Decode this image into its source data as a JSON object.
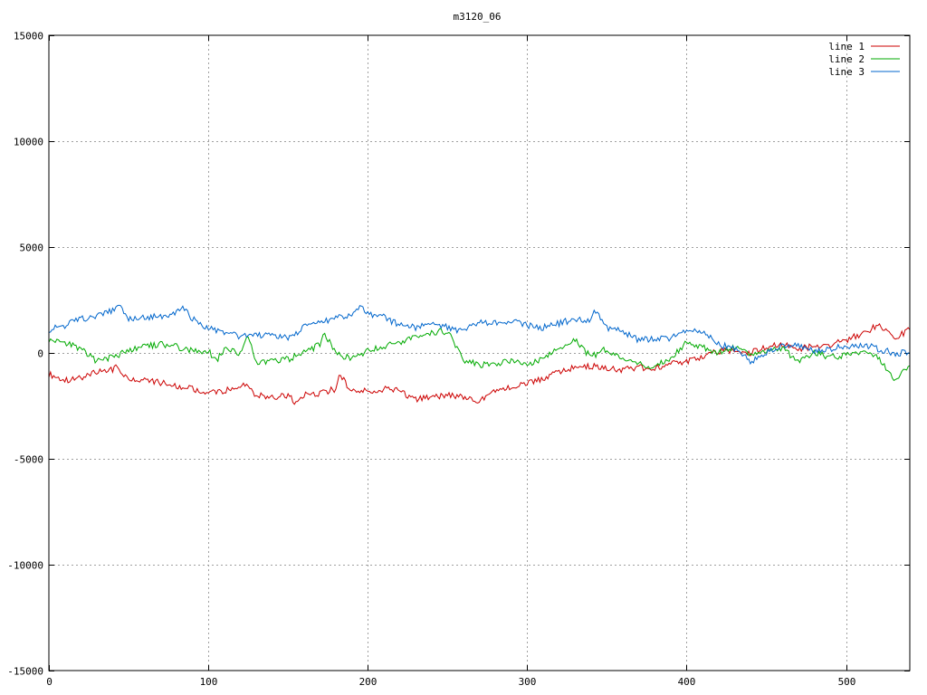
{
  "chart_data": {
    "type": "line",
    "title": "m3120_06",
    "xlabel": "",
    "ylabel": "",
    "xlim": [
      0,
      540
    ],
    "ylim": [
      -15000,
      15000
    ],
    "x_ticks": [
      0,
      100,
      200,
      300,
      400,
      500
    ],
    "y_ticks": [
      -15000,
      -10000,
      -5000,
      0,
      5000,
      10000,
      15000
    ],
    "x_tick_labels": [
      "0",
      "100",
      "200",
      "300",
      "400",
      "500"
    ],
    "y_tick_labels": [
      "-15000",
      "-10000",
      "-5000",
      "0",
      "5000",
      "10000",
      "15000"
    ],
    "grid": true,
    "legend_position": "top-right",
    "series": [
      {
        "name": "line 1",
        "color": "#cc0000",
        "x": [
          0,
          10,
          20,
          30,
          40,
          42,
          50,
          60,
          70,
          80,
          90,
          100,
          110,
          120,
          122,
          130,
          140,
          150,
          155,
          160,
          170,
          180,
          182,
          190,
          200,
          210,
          220,
          230,
          240,
          250,
          260,
          268,
          280,
          290,
          300,
          310,
          320,
          330,
          340,
          350,
          360,
          370,
          380,
          390,
          400,
          410,
          420,
          430,
          440,
          450,
          460,
          470,
          480,
          490,
          500,
          510,
          520,
          530,
          540
        ],
        "values": [
          -1000,
          -1300,
          -1200,
          -900,
          -800,
          -600,
          -1300,
          -1300,
          -1400,
          -1600,
          -1700,
          -1900,
          -1800,
          -1600,
          -1400,
          -2000,
          -2100,
          -2000,
          -2400,
          -2000,
          -1900,
          -1700,
          -1000,
          -1800,
          -1800,
          -1700,
          -1800,
          -2200,
          -2100,
          -2000,
          -2100,
          -2300,
          -1800,
          -1600,
          -1400,
          -1200,
          -900,
          -700,
          -600,
          -700,
          -800,
          -700,
          -700,
          -500,
          -400,
          -200,
          100,
          100,
          0,
          300,
          400,
          200,
          300,
          400,
          600,
          900,
          1300,
          700,
          1100
        ]
      },
      {
        "name": "line 2",
        "color": "#00aa00",
        "x": [
          0,
          10,
          20,
          30,
          40,
          50,
          60,
          70,
          80,
          90,
          100,
          105,
          110,
          120,
          125,
          130,
          140,
          150,
          160,
          170,
          172,
          180,
          190,
          200,
          210,
          220,
          230,
          240,
          250,
          260,
          270,
          280,
          290,
          300,
          310,
          320,
          330,
          340,
          350,
          360,
          370,
          380,
          390,
          400,
          410,
          420,
          430,
          440,
          450,
          460,
          470,
          480,
          490,
          500,
          510,
          520,
          530,
          540
        ],
        "values": [
          600,
          500,
          200,
          -400,
          -200,
          100,
          300,
          400,
          300,
          100,
          100,
          -400,
          200,
          0,
          800,
          -500,
          -400,
          -300,
          0,
          400,
          1000,
          0,
          -300,
          100,
          300,
          500,
          700,
          1000,
          1000,
          -300,
          -600,
          -500,
          -400,
          -500,
          -300,
          200,
          600,
          -200,
          200,
          -300,
          -500,
          -700,
          -200,
          500,
          300,
          0,
          300,
          -100,
          100,
          200,
          -400,
          0,
          -200,
          -100,
          0,
          -200,
          -1300,
          -600
        ]
      },
      {
        "name": "line 3",
        "color": "#0066cc",
        "x": [
          0,
          10,
          20,
          30,
          40,
          43,
          50,
          60,
          70,
          80,
          85,
          90,
          100,
          110,
          120,
          130,
          140,
          150,
          160,
          170,
          180,
          190,
          195,
          200,
          210,
          220,
          230,
          240,
          250,
          260,
          270,
          280,
          290,
          300,
          310,
          320,
          330,
          340,
          342,
          350,
          360,
          370,
          380,
          390,
          400,
          410,
          420,
          430,
          440,
          450,
          460,
          470,
          480,
          490,
          500,
          510,
          520,
          530,
          540
        ],
        "values": [
          1100,
          1300,
          1600,
          1700,
          2000,
          2300,
          1600,
          1700,
          1700,
          1900,
          2100,
          1600,
          1200,
          900,
          800,
          800,
          900,
          700,
          1200,
          1400,
          1700,
          1800,
          2200,
          1800,
          1700,
          1300,
          1200,
          1500,
          1200,
          1000,
          1500,
          1400,
          1500,
          1300,
          1200,
          1400,
          1600,
          1500,
          2100,
          1200,
          1000,
          600,
          700,
          700,
          1000,
          1000,
          400,
          200,
          -400,
          0,
          400,
          300,
          100,
          200,
          300,
          400,
          200,
          0,
          0
        ]
      }
    ]
  }
}
